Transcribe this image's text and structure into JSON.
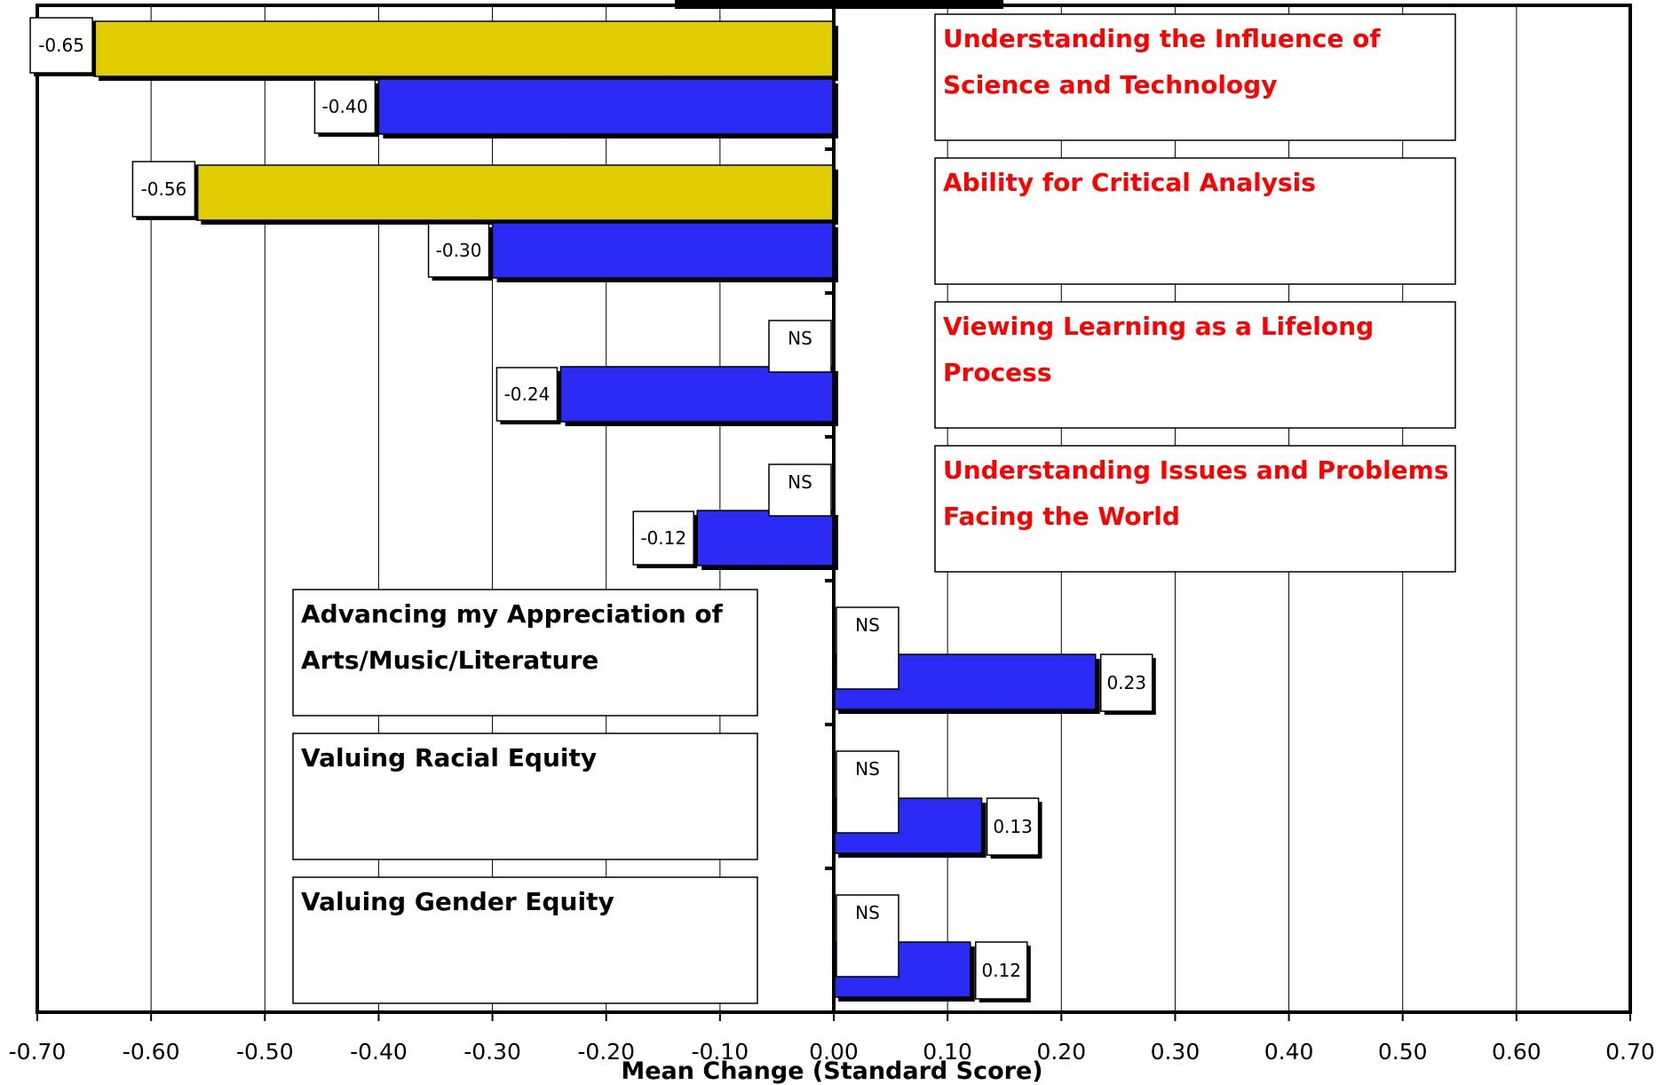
{
  "chart_data": {
    "type": "bar",
    "orientation": "horizontal",
    "title": "",
    "xlabel": "Mean Change (Standard Score)",
    "ylabel": "",
    "xlim": [
      -0.7,
      0.7
    ],
    "xticks": [
      -0.7,
      -0.6,
      -0.5,
      -0.4,
      -0.3,
      -0.2,
      -0.1,
      0.0,
      0.1,
      0.2,
      0.3,
      0.4,
      0.5,
      0.6,
      0.7
    ],
    "tick_labels": [
      "-0.70",
      "-0.60",
      "-0.50",
      "-0.40",
      "-0.30",
      "-0.20",
      "-0.10",
      "0.00",
      "0.10",
      "0.20",
      "0.30",
      "0.40",
      "0.50",
      "0.60",
      "0.70"
    ],
    "grid": "vertical",
    "legend": "none",
    "ns_label": "NS",
    "colors": {
      "yellow": "#e0cc00",
      "blue": "#2b2bf5",
      "red_text": "#ff0000",
      "black_text": "#000000"
    },
    "categories": [
      {
        "label": "Understanding the Influence of Science and Technology",
        "lines": [
          "Understanding the Influence of",
          "Science and Technology"
        ],
        "text_color": "red",
        "side": "right",
        "yellow": {
          "value": -0.65,
          "label": "-0.65"
        },
        "blue": {
          "value": -0.4,
          "label": "-0.40"
        }
      },
      {
        "label": "Ability for Critical Analysis",
        "lines": [
          "Ability for Critical Analysis"
        ],
        "text_color": "red",
        "side": "right",
        "yellow": {
          "value": -0.56,
          "label": "-0.56"
        },
        "blue": {
          "value": -0.3,
          "label": "-0.30"
        }
      },
      {
        "label": "Viewing Learning as a Lifelong Process",
        "lines": [
          "Viewing Learning as a Lifelong",
          "Process"
        ],
        "text_color": "red",
        "side": "right",
        "yellow": {
          "value": null,
          "label": "NS"
        },
        "blue": {
          "value": -0.24,
          "label": "-0.24"
        }
      },
      {
        "label": "Understanding Issues and Problems Facing the World",
        "lines": [
          "Understanding Issues and Problems",
          "Facing the World"
        ],
        "text_color": "red",
        "side": "right",
        "yellow": {
          "value": null,
          "label": "NS"
        },
        "blue": {
          "value": -0.12,
          "label": "-0.12"
        }
      },
      {
        "label": "Advancing my Appreciation of Arts/Music/Literature",
        "lines": [
          "Advancing my Appreciation of",
          "Arts/Music/Literature"
        ],
        "text_color": "black",
        "side": "left",
        "yellow": {
          "value": null,
          "label": "NS"
        },
        "blue": {
          "value": 0.23,
          "label": "0.23"
        }
      },
      {
        "label": "Valuing Racial Equity",
        "lines": [
          "Valuing Racial Equity"
        ],
        "text_color": "black",
        "side": "left",
        "yellow": {
          "value": null,
          "label": "NS"
        },
        "blue": {
          "value": 0.13,
          "label": "0.13"
        }
      },
      {
        "label": "Valuing Gender Equity",
        "lines": [
          "Valuing Gender Equity"
        ],
        "text_color": "black",
        "side": "left",
        "yellow": {
          "value": null,
          "label": "NS"
        },
        "blue": {
          "value": 0.12,
          "label": "0.12"
        }
      }
    ]
  }
}
